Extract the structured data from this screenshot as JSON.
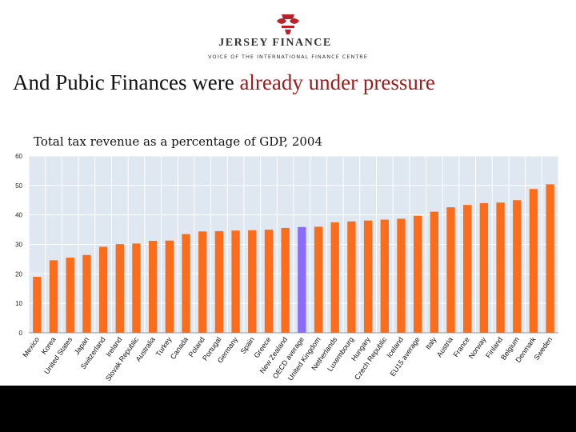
{
  "brand": {
    "name": "JERSEY FINANCE",
    "tagline": "VOICE OF THE INTERNATIONAL FINANCE CENTRE"
  },
  "slide": {
    "title_plain": "And Pubic Finances were ",
    "title_accent": "already under pressure"
  },
  "chart_data": {
    "type": "bar",
    "title": "Total tax revenue as a percentage of GDP, 2004",
    "xlabel": "",
    "ylabel": "",
    "ylim": [
      0,
      60
    ],
    "yticks": [
      0,
      10,
      20,
      30,
      40,
      50,
      60
    ],
    "grid": true,
    "colors": {
      "bar": "#fb6d1b",
      "highlight": "#8a6cf7",
      "grid_bg": "#dfe7f1",
      "gridline": "#ffffff"
    },
    "highlight": "OECD average",
    "categories": [
      "Mexico",
      "Korea",
      "United States",
      "Japan",
      "Switzerland",
      "Ireland",
      "Slovak Republic",
      "Australia",
      "Turkey",
      "Canada",
      "Poland",
      "Portugal",
      "Germany",
      "Spain",
      "Greece",
      "New Zealand",
      "OECD average",
      "United Kingdom",
      "Netherlands",
      "Luxembourg",
      "Hungary",
      "Czech Republic",
      "Iceland",
      "EU15 average",
      "Italy",
      "Austria",
      "France",
      "Norway",
      "Finland",
      "Belgium",
      "Denmark",
      "Sweden"
    ],
    "values": [
      19.0,
      24.6,
      25.5,
      26.4,
      29.2,
      30.1,
      30.3,
      31.2,
      31.3,
      33.5,
      34.4,
      34.5,
      34.7,
      34.8,
      35.0,
      35.6,
      35.9,
      36.0,
      37.5,
      37.8,
      38.1,
      38.4,
      38.7,
      39.7,
      41.1,
      42.6,
      43.4,
      44.0,
      44.2,
      45.0,
      48.8,
      50.4
    ]
  }
}
